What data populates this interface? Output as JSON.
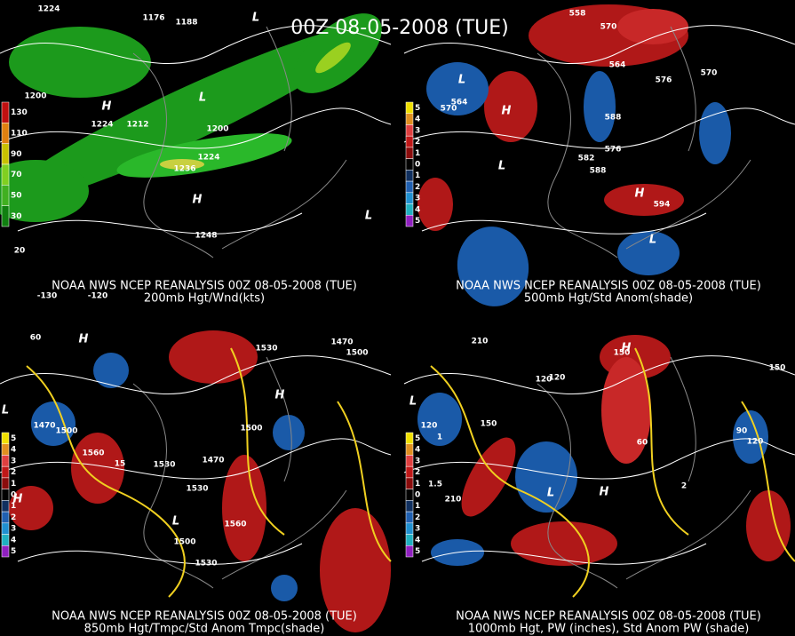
{
  "title": "00Z 08-05-2008 (TUE)",
  "panels": [
    {
      "caption": "NOAA NWS NCEP REANALYSIS 00Z 08-05-2008 (TUE)",
      "subtitle": "200mb Hgt/Wnd(kts)",
      "legend": [
        "130",
        "110",
        "90",
        "70",
        "50",
        "30"
      ],
      "labels": [
        "1224",
        "1176",
        "1188",
        "1200",
        "1224",
        "1212",
        "1200",
        "1236",
        "1224",
        "1248",
        "H",
        "H",
        "L",
        "L",
        "L",
        "20",
        "-130",
        "-120"
      ]
    },
    {
      "caption": "NOAA NWS NCEP REANALYSIS 00Z 08-05-2008 (TUE)",
      "subtitle": "500mb Hgt/Std Anom(shade)",
      "legend": [
        "5",
        "4",
        "3",
        "2",
        "1",
        "0",
        "1",
        "2",
        "3",
        "4",
        "5"
      ],
      "labels": [
        "558",
        "570",
        "564",
        "576",
        "570",
        "564",
        "570",
        "588",
        "576",
        "582",
        "588",
        "594",
        "H",
        "H",
        "L",
        "L",
        "L"
      ]
    },
    {
      "caption": "NOAA NWS NCEP REANALYSIS 00Z 08-05-2008 (TUE)",
      "subtitle": "850mb Hgt/Tmpc/Std Anom Tmpc(shade)",
      "legend": [
        "5",
        "4",
        "3",
        "2",
        "1",
        "0",
        "1",
        "2",
        "3",
        "4",
        "5"
      ],
      "labels": [
        "1530",
        "1470",
        "1500",
        "1470",
        "1500",
        "1560",
        "1530",
        "1470",
        "1500",
        "1530",
        "1560",
        "1500",
        "1530",
        "H",
        "H",
        "H",
        "L",
        "L",
        "60",
        "15"
      ]
    },
    {
      "caption": "NOAA NWS NCEP REANALYSIS 00Z 08-05-2008 (TUE)",
      "subtitle": "1000mb Hgt, PW (inches), Std Anom PW (shade)",
      "legend": [
        "5",
        "4",
        "3",
        "2",
        "1",
        "0",
        "1",
        "2",
        "3",
        "4",
        "5"
      ],
      "labels": [
        "150",
        "120",
        "120",
        "150",
        "120",
        "60",
        "90",
        "120",
        "210",
        "150",
        "210",
        "L",
        "L",
        "H",
        "H",
        "1.5",
        "1",
        "2"
      ]
    }
  ]
}
